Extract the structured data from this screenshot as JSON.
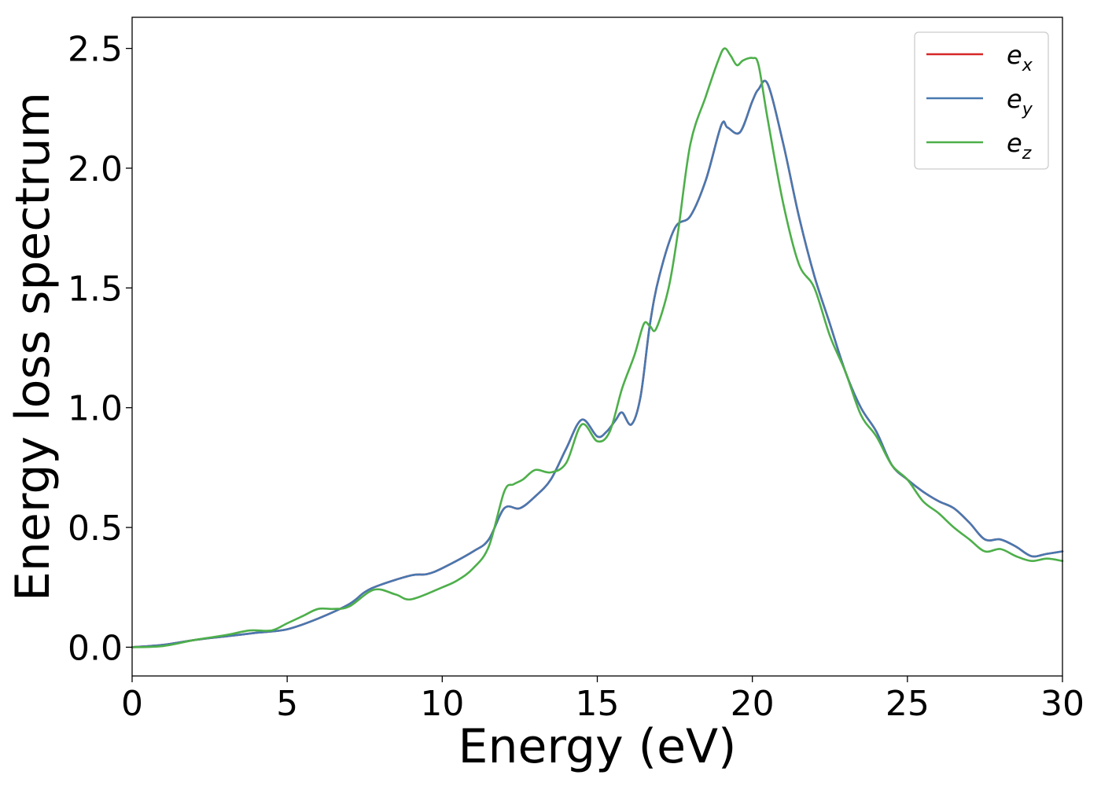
{
  "chart_data": {
    "type": "line",
    "title": "",
    "xlabel": "Energy (eV)",
    "ylabel": "Energy loss spectrum",
    "xlim": [
      0,
      30
    ],
    "ylim": [
      -0.12,
      2.63
    ],
    "xticks": [
      0,
      5,
      10,
      15,
      20,
      25,
      30
    ],
    "xtick_labels": [
      "0",
      "5",
      "10",
      "15",
      "20",
      "25",
      "30"
    ],
    "yticks": [
      0.0,
      0.5,
      1.0,
      1.5,
      2.0,
      2.5
    ],
    "ytick_labels": [
      "0.0",
      "0.5",
      "1.0",
      "1.5",
      "2.0",
      "2.5"
    ],
    "grid": false,
    "legend_position": "top-right",
    "series": [
      {
        "name": "e_x",
        "legend_base": "e",
        "legend_sub": "x",
        "color": "#d62728",
        "x": [
          0,
          1,
          2,
          3,
          4,
          5,
          6,
          7,
          7.5,
          8,
          9,
          9.5,
          10,
          11,
          11.5,
          12,
          12.5,
          13,
          13.5,
          14,
          14.5,
          15,
          15.3,
          15.6,
          15.8,
          16.1,
          16.4,
          16.7,
          17,
          17.5,
          18,
          18.5,
          19,
          19.2,
          19.6,
          20,
          20.2,
          20.5,
          21,
          21.5,
          22,
          22.5,
          23,
          23.5,
          24,
          24.5,
          25,
          25.5,
          26,
          26.5,
          27,
          27.5,
          28,
          28.5,
          29,
          29.5,
          30
        ],
        "y": [
          0.0,
          0.01,
          0.03,
          0.045,
          0.06,
          0.075,
          0.12,
          0.18,
          0.23,
          0.26,
          0.3,
          0.305,
          0.33,
          0.4,
          0.45,
          0.58,
          0.58,
          0.63,
          0.7,
          0.83,
          0.95,
          0.88,
          0.9,
          0.95,
          0.98,
          0.93,
          1.05,
          1.35,
          1.55,
          1.75,
          1.8,
          1.95,
          2.18,
          2.17,
          2.15,
          2.28,
          2.33,
          2.35,
          2.1,
          1.8,
          1.55,
          1.35,
          1.15,
          1.0,
          0.9,
          0.76,
          0.7,
          0.65,
          0.61,
          0.58,
          0.52,
          0.45,
          0.45,
          0.42,
          0.38,
          0.39,
          0.4
        ]
      },
      {
        "name": "e_y",
        "legend_base": "e",
        "legend_sub": "y",
        "color": "#4878b0",
        "x": [
          0,
          1,
          2,
          3,
          4,
          5,
          6,
          7,
          7.5,
          8,
          9,
          9.5,
          10,
          11,
          11.5,
          12,
          12.5,
          13,
          13.5,
          14,
          14.5,
          15,
          15.3,
          15.6,
          15.8,
          16.1,
          16.4,
          16.7,
          17,
          17.5,
          18,
          18.5,
          19,
          19.2,
          19.6,
          20,
          20.2,
          20.5,
          21,
          21.5,
          22,
          22.5,
          23,
          23.5,
          24,
          24.5,
          25,
          25.5,
          26,
          26.5,
          27,
          27.5,
          28,
          28.5,
          29,
          29.5,
          30
        ],
        "y": [
          0.0,
          0.01,
          0.03,
          0.045,
          0.06,
          0.075,
          0.12,
          0.18,
          0.23,
          0.26,
          0.3,
          0.305,
          0.33,
          0.4,
          0.45,
          0.58,
          0.58,
          0.63,
          0.7,
          0.83,
          0.95,
          0.88,
          0.9,
          0.95,
          0.98,
          0.93,
          1.05,
          1.35,
          1.55,
          1.75,
          1.8,
          1.95,
          2.18,
          2.17,
          2.15,
          2.28,
          2.33,
          2.35,
          2.1,
          1.8,
          1.55,
          1.35,
          1.15,
          1.0,
          0.9,
          0.76,
          0.7,
          0.65,
          0.61,
          0.58,
          0.52,
          0.45,
          0.45,
          0.42,
          0.38,
          0.39,
          0.4
        ]
      },
      {
        "name": "e_z",
        "legend_base": "e",
        "legend_sub": "z",
        "color": "#4daf4a",
        "x": [
          0,
          1,
          2,
          3,
          3.8,
          4.5,
          5,
          5.5,
          6,
          6.5,
          7,
          7.8,
          8.5,
          9,
          10,
          10.5,
          11,
          11.5,
          12,
          12.3,
          12.6,
          13,
          13.5,
          14,
          14.5,
          15,
          15.4,
          15.8,
          16.2,
          16.5,
          16.7,
          16.9,
          17.3,
          17.6,
          18,
          18.5,
          18.9,
          19.1,
          19.3,
          19.5,
          19.7,
          20,
          20.2,
          20.5,
          21,
          21.5,
          22,
          22.5,
          23,
          23.5,
          24,
          24.5,
          25,
          25.5,
          26,
          26.5,
          27,
          27.5,
          28,
          28.5,
          29,
          29.5,
          30
        ],
        "y": [
          0.0,
          0.005,
          0.03,
          0.05,
          0.07,
          0.07,
          0.1,
          0.13,
          0.16,
          0.16,
          0.17,
          0.24,
          0.22,
          0.2,
          0.25,
          0.28,
          0.33,
          0.42,
          0.65,
          0.68,
          0.7,
          0.74,
          0.73,
          0.77,
          0.93,
          0.86,
          0.9,
          1.08,
          1.22,
          1.35,
          1.34,
          1.33,
          1.5,
          1.73,
          2.1,
          2.3,
          2.45,
          2.5,
          2.47,
          2.43,
          2.45,
          2.46,
          2.43,
          2.2,
          1.85,
          1.6,
          1.5,
          1.3,
          1.15,
          0.97,
          0.88,
          0.76,
          0.7,
          0.61,
          0.56,
          0.5,
          0.45,
          0.4,
          0.41,
          0.38,
          0.36,
          0.37,
          0.36
        ]
      }
    ]
  }
}
